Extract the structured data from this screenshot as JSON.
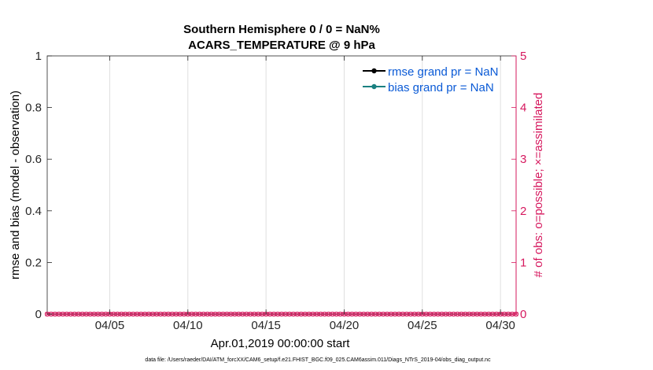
{
  "chart_data": {
    "type": "line",
    "title": "Southern Hemisphere 0 / 0 = NaN%",
    "subtitle": "ACARS_TEMPERATURE @ 9 hPa",
    "xlabel": "Apr.01,2019 00:00:00 start",
    "ylabel": "rmse and bias (model - observation)",
    "ylabel_right": "# of obs: o=possible; ×=assimilated",
    "xlim": [
      1,
      31
    ],
    "ylim": [
      0,
      1
    ],
    "ylim_right": [
      0,
      5
    ],
    "x_ticks": [
      5,
      10,
      15,
      20,
      25,
      30
    ],
    "x_tick_labels": [
      "04/05",
      "04/10",
      "04/15",
      "04/20",
      "04/25",
      "04/30"
    ],
    "y_ticks": [
      0,
      0.2,
      0.4,
      0.6,
      0.8,
      1
    ],
    "y_tick_labels": [
      "0",
      "0.2",
      "0.4",
      "0.6",
      "0.8",
      "1"
    ],
    "y_ticks_right": [
      0,
      1,
      2,
      3,
      4,
      5
    ],
    "y_tick_labels_right": [
      "0",
      "1",
      "2",
      "3",
      "4",
      "5"
    ],
    "grid": "vertical",
    "legend_position": "top-right",
    "series": [
      {
        "name": "rmse grand pr = NaN",
        "color": "#000000",
        "axis": "left",
        "values": []
      },
      {
        "name": "bias grand pr = NaN",
        "color": "#1a8080",
        "axis": "left",
        "values": []
      },
      {
        "name": "obs possible",
        "color": "#d6185e",
        "axis": "right",
        "marker": "o",
        "x_start": 1,
        "x_step": 0.25,
        "count": 121,
        "value": 0
      },
      {
        "name": "obs assimilated",
        "color": "#d6185e",
        "axis": "right",
        "marker": "x",
        "x_start": 1,
        "x_step": 0.25,
        "count": 121,
        "value": 0
      }
    ]
  },
  "footer": "data file: /Users/raeder/DAI/ATM_forcXX/CAM6_setup/f.e21.FHIST_BGC.f09_025.CAM6assim.011/Diags_NTrS_2019-04/obs_diag_output.nc",
  "colors": {
    "right_axis": "#d6185e",
    "legend_text": "#0a5ad6",
    "grid": "#dfdfdf"
  }
}
